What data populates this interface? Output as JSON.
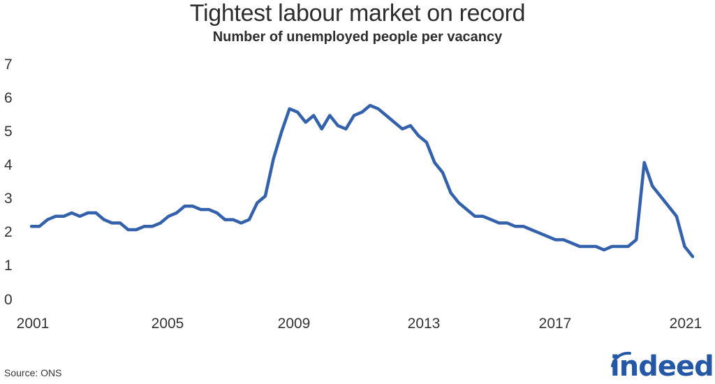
{
  "header": {
    "title": "Tightest labour market on record",
    "subtitle": "Number of unemployed people per vacancy"
  },
  "footer": {
    "source": "Source: ONS",
    "logo": "indeed"
  },
  "colors": {
    "line": "#3461ab",
    "brand": "#2557a7",
    "text": "#2d2d2d"
  },
  "chart_data": {
    "type": "line",
    "title": "Tightest labour market on record",
    "subtitle": "Number of unemployed people per vacancy",
    "xlabel": "",
    "ylabel": "",
    "ylim": [
      0,
      7
    ],
    "xlim": [
      2001,
      2021.5
    ],
    "yticks": [
      "0",
      "1",
      "2",
      "3",
      "4",
      "5",
      "6",
      "7"
    ],
    "xticks": [
      "2001",
      "2005",
      "2009",
      "2013",
      "2017",
      "2021"
    ],
    "grid": false,
    "legend": null,
    "source": "Source: ONS",
    "series": [
      {
        "name": "Unemployed people per vacancy",
        "x": [
          2001.0,
          2001.25,
          2001.5,
          2001.75,
          2002.0,
          2002.25,
          2002.5,
          2002.75,
          2003.0,
          2003.25,
          2003.5,
          2003.75,
          2004.0,
          2004.25,
          2004.5,
          2004.75,
          2005.0,
          2005.25,
          2005.5,
          2005.75,
          2006.0,
          2006.25,
          2006.5,
          2006.75,
          2007.0,
          2007.25,
          2007.5,
          2007.75,
          2008.0,
          2008.25,
          2008.5,
          2008.75,
          2009.0,
          2009.25,
          2009.5,
          2009.75,
          2010.0,
          2010.25,
          2010.5,
          2010.75,
          2011.0,
          2011.25,
          2011.5,
          2011.75,
          2012.0,
          2012.25,
          2012.5,
          2012.75,
          2013.0,
          2013.25,
          2013.5,
          2013.75,
          2014.0,
          2014.25,
          2014.5,
          2014.75,
          2015.0,
          2015.25,
          2015.5,
          2015.75,
          2016.0,
          2016.25,
          2016.5,
          2016.75,
          2017.0,
          2017.25,
          2017.5,
          2017.75,
          2018.0,
          2018.25,
          2018.5,
          2018.75,
          2019.0,
          2019.25,
          2019.5,
          2019.75,
          2020.0,
          2020.25,
          2020.5,
          2020.75,
          2021.0,
          2021.25,
          2021.5
        ],
        "values": [
          2.2,
          2.2,
          2.4,
          2.5,
          2.5,
          2.6,
          2.5,
          2.6,
          2.6,
          2.4,
          2.3,
          2.3,
          2.1,
          2.1,
          2.2,
          2.2,
          2.3,
          2.5,
          2.6,
          2.8,
          2.8,
          2.7,
          2.7,
          2.6,
          2.4,
          2.4,
          2.3,
          2.4,
          2.9,
          3.1,
          4.2,
          5.0,
          5.7,
          5.6,
          5.3,
          5.5,
          5.1,
          5.5,
          5.2,
          5.1,
          5.5,
          5.6,
          5.8,
          5.7,
          5.5,
          5.3,
          5.1,
          5.2,
          4.9,
          4.7,
          4.1,
          3.8,
          3.2,
          2.9,
          2.7,
          2.5,
          2.5,
          2.4,
          2.3,
          2.3,
          2.2,
          2.2,
          2.1,
          2.0,
          1.9,
          1.8,
          1.8,
          1.7,
          1.6,
          1.6,
          1.6,
          1.5,
          1.6,
          1.6,
          1.6,
          1.8,
          4.1,
          3.4,
          3.1,
          2.8,
          2.5,
          1.6,
          1.3
        ]
      }
    ]
  }
}
